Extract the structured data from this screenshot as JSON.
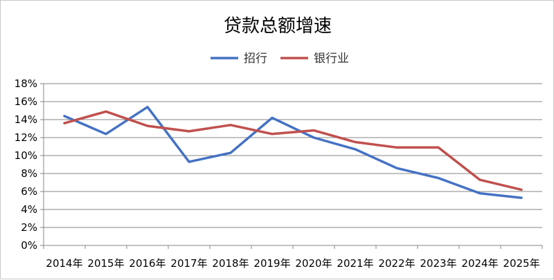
{
  "chart_data": {
    "type": "line",
    "title": "贷款总额增速",
    "xlabel": "",
    "ylabel": "",
    "categories": [
      "2014年",
      "2015年",
      "2016年",
      "2017年",
      "2018年",
      "2019年",
      "2020年",
      "2021年",
      "2022年",
      "2023年",
      "2024年",
      "2025年"
    ],
    "y_ticks": [
      "0%",
      "2%",
      "4%",
      "6%",
      "8%",
      "10%",
      "12%",
      "14%",
      "16%",
      "18%"
    ],
    "ylim": [
      0,
      18
    ],
    "grid": true,
    "legend_position": "top",
    "series": [
      {
        "name": "招行",
        "color": "#4472C4",
        "values": [
          14.4,
          12.4,
          15.4,
          9.3,
          10.3,
          14.2,
          12.0,
          10.7,
          8.6,
          7.5,
          5.8,
          5.3
        ]
      },
      {
        "name": "银行业",
        "color": "#C0504D",
        "values": [
          13.6,
          14.9,
          13.3,
          12.7,
          13.4,
          12.4,
          12.8,
          11.5,
          10.9,
          10.9,
          7.3,
          6.2
        ]
      }
    ]
  }
}
